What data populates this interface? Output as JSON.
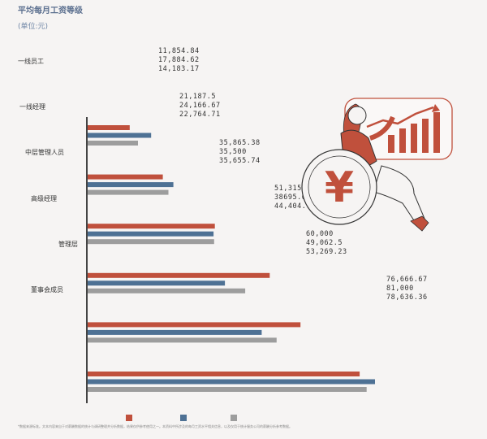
{
  "header": {
    "title": "平均每月工资等级",
    "unit": "(单位:元)"
  },
  "colors": {
    "series1": "#c0503c",
    "series2": "#4e7194",
    "series3": "#9d9d9d",
    "axis": "#444444"
  },
  "footnote": "*数据来源标准。文本内容来自于对薪酬数据的统计与调研整理并分析数据，结果仅供参考使用之一。本资料中所涉及的每月工资水平相关信息，以及仅用于统计服务公司的薪酬分析参考数据。",
  "illustration": {
    "icon": "yuan-coin-icon",
    "chart_icon": "growth-chart-icon"
  },
  "chart_data": {
    "type": "bar",
    "orientation": "horizontal",
    "categories": [
      "一线员工",
      "一线经理",
      "中层管理人员",
      "高级经理",
      "管理层",
      "董事会成员"
    ],
    "series": [
      {
        "values": [
          11854.84,
          21187.5,
          35865.38,
          51315.79,
          60000,
          76666.67
        ]
      },
      {
        "values": [
          17884.62,
          24166.67,
          35500,
          38695.65,
          49062.5,
          81000
        ]
      },
      {
        "values": [
          14183.17,
          22764.71,
          35655.74,
          44404.76,
          53269.23,
          78636.36
        ]
      }
    ],
    "value_labels": [
      [
        "11,854.84",
        "17,884.62",
        "14,183.17"
      ],
      [
        "21,187.5",
        "24,166.67",
        "22,764.71"
      ],
      [
        "35,865.38",
        "35,500",
        "35,655.74"
      ],
      [
        "51,315.79",
        "38695.65",
        "44,404.76"
      ],
      [
        "60,000",
        "49,062.5",
        "53,269.23"
      ],
      [
        "76,666.67",
        "81,000",
        "78,636.36"
      ]
    ],
    "title": "平均每月工资等级",
    "xlabel": "",
    "ylabel": "",
    "xlim": [
      0,
      81000
    ],
    "grid": false,
    "legend": "bottom"
  }
}
